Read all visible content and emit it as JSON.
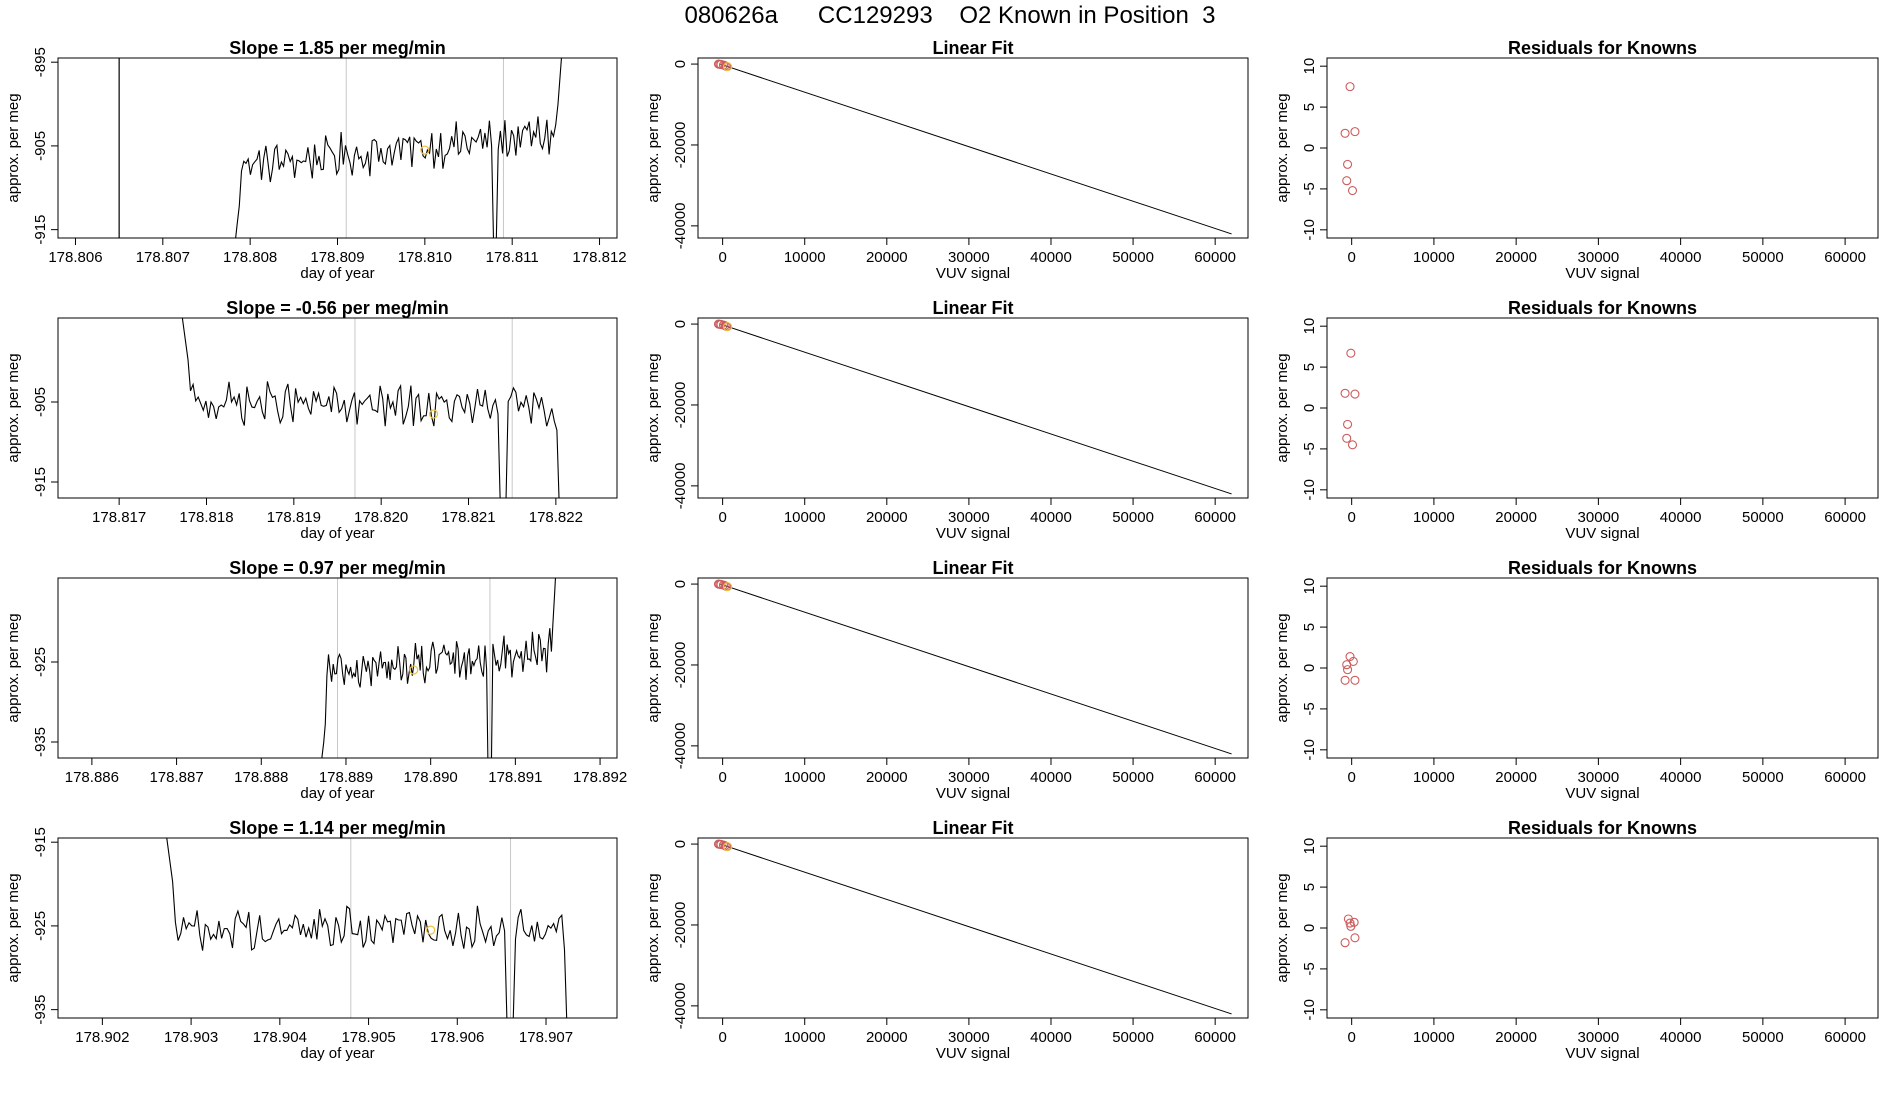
{
  "page": {
    "title": "080626a      CC129293    O2 Known in Position  3"
  },
  "colors": {
    "trace": "#000000",
    "grid_line": "#c8c8c8",
    "known_marker": "#f0c040",
    "points": "#cd5c5c",
    "axis": "#000000"
  },
  "chart_data": [
    {
      "id": "time-1",
      "type": "line",
      "row": 0,
      "col": 0,
      "title": "Slope =  1.85  per meg/min",
      "xlabel": "day of year",
      "ylabel": "approx. per meg",
      "xlim": [
        178.8058,
        178.8122
      ],
      "ylim": [
        -916,
        -894.5
      ],
      "xticks": [
        178.806,
        178.807,
        178.808,
        178.809,
        178.81,
        178.811,
        178.812
      ],
      "xtick_labels": [
        "178.806",
        "178.807",
        "178.808",
        "178.809",
        "178.810",
        "178.811",
        "178.812"
      ],
      "yticks": [
        -915,
        -905,
        -895
      ],
      "ytick_labels": [
        "-915",
        "-905",
        "-895"
      ],
      "dark_vlines": [
        178.8065
      ],
      "grey_vlines": [
        178.8091,
        178.8109
      ],
      "trace_start": 178.8078,
      "trace_end": 178.8116,
      "trace_base": -907.5,
      "trace_trend": 4.0,
      "left_plunge": true,
      "end_rise": true,
      "dip_x": 178.8108,
      "known_point": [
        178.81,
        -905.5
      ]
    },
    {
      "id": "fit-1",
      "type": "scatter",
      "row": 0,
      "col": 1,
      "title": "Linear Fit",
      "xlabel": "VUV signal",
      "ylabel": "approx. per meg",
      "xlim": [
        -3000,
        64000
      ],
      "ylim": [
        -43000,
        1500
      ],
      "xticks": [
        0,
        10000,
        20000,
        30000,
        40000,
        50000,
        60000
      ],
      "xtick_labels": [
        "0",
        "10000",
        "20000",
        "30000",
        "40000",
        "50000",
        "60000"
      ],
      "yticks": [
        0,
        -20000,
        -40000
      ],
      "ytick_labels": [
        "0",
        "-20000",
        "-40000"
      ],
      "fit_line": [
        [
          -300,
          0
        ],
        [
          62000,
          -42000
        ]
      ],
      "points": [
        [
          -500,
          0
        ],
        [
          -200,
          -100
        ],
        [
          100,
          -250
        ],
        [
          300,
          -400
        ],
        [
          500,
          -600
        ],
        [
          -350,
          -50
        ]
      ],
      "highlight_point": [
        600,
        -650
      ]
    },
    {
      "id": "resid-1",
      "type": "scatter",
      "row": 0,
      "col": 2,
      "title": "Residuals for Knowns",
      "xlabel": "VUV signal",
      "ylabel": "approx. per meg",
      "xlim": [
        -3000,
        64000
      ],
      "ylim": [
        -11,
        11
      ],
      "xticks": [
        0,
        10000,
        20000,
        30000,
        40000,
        50000,
        60000
      ],
      "xtick_labels": [
        "0",
        "10000",
        "20000",
        "30000",
        "40000",
        "50000",
        "60000"
      ],
      "yticks": [
        -10,
        -5,
        0,
        5,
        10
      ],
      "ytick_labels": [
        "-10",
        "-5",
        "0",
        "5",
        "10"
      ],
      "points": [
        [
          -200,
          7.5
        ],
        [
          -800,
          1.8
        ],
        [
          400,
          2.0
        ],
        [
          -500,
          -2.0
        ],
        [
          -600,
          -4.0
        ],
        [
          100,
          -5.2
        ]
      ]
    },
    {
      "id": "time-2",
      "type": "line",
      "row": 1,
      "col": 0,
      "title": "Slope =  -0.56  per meg/min",
      "xlabel": "day of year",
      "ylabel": "approx. per meg",
      "xlim": [
        178.8163,
        178.8227
      ],
      "ylim": [
        -917,
        -894.5
      ],
      "xticks": [
        178.817,
        178.818,
        178.819,
        178.82,
        178.821,
        178.822
      ],
      "xtick_labels": [
        "178.817",
        "178.818",
        "178.819",
        "178.820",
        "178.821",
        "178.822"
      ],
      "yticks": [
        -915,
        -905
      ],
      "ytick_labels": [
        "-915",
        "-905"
      ],
      "dark_vlines": [],
      "grey_vlines": [
        178.8197,
        178.8215
      ],
      "trace_start": 178.8177,
      "trace_end": 178.8221,
      "trace_base": -905.0,
      "trace_trend": -1.0,
      "left_plunge": false,
      "end_rise": false,
      "start_high": true,
      "end_plunge": true,
      "dip_x": 178.8214,
      "known_point": [
        178.8206,
        -906.5
      ]
    },
    {
      "id": "fit-2",
      "type": "scatter",
      "row": 1,
      "col": 1,
      "title": "Linear Fit",
      "xlabel": "VUV signal",
      "ylabel": "approx. per meg",
      "xlim": [
        -3000,
        64000
      ],
      "ylim": [
        -43000,
        1500
      ],
      "xticks": [
        0,
        10000,
        20000,
        30000,
        40000,
        50000,
        60000
      ],
      "xtick_labels": [
        "0",
        "10000",
        "20000",
        "30000",
        "40000",
        "50000",
        "60000"
      ],
      "yticks": [
        0,
        -20000,
        -40000
      ],
      "ytick_labels": [
        "0",
        "-20000",
        "-40000"
      ],
      "fit_line": [
        [
          -300,
          0
        ],
        [
          62000,
          -42000
        ]
      ],
      "points": [
        [
          -500,
          0
        ],
        [
          -200,
          -100
        ],
        [
          100,
          -250
        ],
        [
          300,
          -400
        ],
        [
          500,
          -600
        ],
        [
          -350,
          -50
        ]
      ],
      "highlight_point": [
        600,
        -650
      ]
    },
    {
      "id": "resid-2",
      "type": "scatter",
      "row": 1,
      "col": 2,
      "title": "Residuals for Knowns",
      "xlabel": "VUV signal",
      "ylabel": "approx. per meg",
      "xlim": [
        -3000,
        64000
      ],
      "ylim": [
        -11,
        11
      ],
      "xticks": [
        0,
        10000,
        20000,
        30000,
        40000,
        50000,
        60000
      ],
      "xtick_labels": [
        "0",
        "10000",
        "20000",
        "30000",
        "40000",
        "50000",
        "60000"
      ],
      "yticks": [
        -10,
        -5,
        0,
        5,
        10
      ],
      "ytick_labels": [
        "-10",
        "-5",
        "0",
        "5",
        "10"
      ],
      "points": [
        [
          -100,
          6.7
        ],
        [
          -800,
          1.8
        ],
        [
          400,
          1.7
        ],
        [
          -500,
          -2.0
        ],
        [
          -600,
          -3.7
        ],
        [
          100,
          -4.5
        ]
      ]
    },
    {
      "id": "time-3",
      "type": "line",
      "row": 2,
      "col": 0,
      "title": "Slope =  0.97  per meg/min",
      "xlabel": "day of year",
      "ylabel": "approx. per meg",
      "xlim": [
        178.8856,
        178.8922
      ],
      "ylim": [
        -937,
        -914.5
      ],
      "xticks": [
        178.886,
        178.887,
        178.888,
        178.889,
        178.89,
        178.891,
        178.892
      ],
      "xtick_labels": [
        "178.886",
        "178.887",
        "178.888",
        "178.889",
        "178.890",
        "178.891",
        "178.892"
      ],
      "yticks": [
        -935,
        -925
      ],
      "ytick_labels": [
        "-935",
        "-925"
      ],
      "dark_vlines": [],
      "grey_vlines": [
        178.8889,
        178.8907
      ],
      "trace_start": 178.8887,
      "trace_end": 178.8915,
      "trace_base": -926.5,
      "trace_trend": 3.0,
      "left_plunge": true,
      "end_rise": true,
      "dip_x": 178.8907,
      "known_point": [
        178.8898,
        -926.0
      ]
    },
    {
      "id": "fit-3",
      "type": "scatter",
      "row": 2,
      "col": 1,
      "title": "Linear Fit",
      "xlabel": "VUV signal",
      "ylabel": "approx. per meg",
      "xlim": [
        -3000,
        64000
      ],
      "ylim": [
        -43000,
        1500
      ],
      "xticks": [
        0,
        10000,
        20000,
        30000,
        40000,
        50000,
        60000
      ],
      "xtick_labels": [
        "0",
        "10000",
        "20000",
        "30000",
        "40000",
        "50000",
        "60000"
      ],
      "yticks": [
        0,
        -20000,
        -40000
      ],
      "ytick_labels": [
        "0",
        "-20000",
        "-40000"
      ],
      "fit_line": [
        [
          -300,
          0
        ],
        [
          62000,
          -42000
        ]
      ],
      "points": [
        [
          -500,
          0
        ],
        [
          -200,
          -100
        ],
        [
          100,
          -250
        ],
        [
          300,
          -400
        ],
        [
          500,
          -600
        ],
        [
          -350,
          -50
        ]
      ],
      "highlight_point": [
        600,
        -650
      ]
    },
    {
      "id": "resid-3",
      "type": "scatter",
      "row": 2,
      "col": 2,
      "title": "Residuals for Knowns",
      "xlabel": "VUV signal",
      "ylabel": "approx. per meg",
      "xlim": [
        -3000,
        64000
      ],
      "ylim": [
        -11,
        11
      ],
      "xticks": [
        0,
        10000,
        20000,
        30000,
        40000,
        50000,
        60000
      ],
      "xtick_labels": [
        "0",
        "10000",
        "20000",
        "30000",
        "40000",
        "50000",
        "60000"
      ],
      "yticks": [
        -10,
        -5,
        0,
        5,
        10
      ],
      "ytick_labels": [
        "-10",
        "-5",
        "0",
        "5",
        "10"
      ],
      "points": [
        [
          -200,
          1.4
        ],
        [
          -600,
          0.4
        ],
        [
          200,
          0.8
        ],
        [
          -500,
          -0.2
        ],
        [
          -800,
          -1.5
        ],
        [
          400,
          -1.5
        ]
      ]
    },
    {
      "id": "time-4",
      "type": "line",
      "row": 3,
      "col": 0,
      "title": "Slope =  1.14  per meg/min",
      "xlabel": "day of year",
      "ylabel": "approx. per meg",
      "xlim": [
        178.9015,
        178.9078
      ],
      "ylim": [
        -936,
        -914.5
      ],
      "xticks": [
        178.902,
        178.903,
        178.904,
        178.905,
        178.906,
        178.907
      ],
      "xtick_labels": [
        "178.902",
        "178.903",
        "178.904",
        "178.905",
        "178.906",
        "178.907"
      ],
      "yticks": [
        -935,
        -925,
        -915
      ],
      "ytick_labels": [
        "-935",
        "-925",
        "-915"
      ],
      "dark_vlines": [],
      "grey_vlines": [
        178.9048,
        178.9066
      ],
      "trace_start": 178.9027,
      "trace_end": 178.9073,
      "trace_base": -925.5,
      "trace_trend": 0.5,
      "left_plunge": false,
      "end_rise": false,
      "start_high": true,
      "end_plunge": true,
      "dip_x": 178.9066,
      "known_point": [
        178.9057,
        -925.5
      ]
    },
    {
      "id": "fit-4",
      "type": "scatter",
      "row": 3,
      "col": 1,
      "title": "Linear Fit",
      "xlabel": "VUV signal",
      "ylabel": "approx. per meg",
      "xlim": [
        -3000,
        64000
      ],
      "ylim": [
        -43000,
        1500
      ],
      "xticks": [
        0,
        10000,
        20000,
        30000,
        40000,
        50000,
        60000
      ],
      "xtick_labels": [
        "0",
        "10000",
        "20000",
        "30000",
        "40000",
        "50000",
        "60000"
      ],
      "yticks": [
        0,
        -20000,
        -40000
      ],
      "ytick_labels": [
        "0",
        "-20000",
        "-40000"
      ],
      "fit_line": [
        [
          -300,
          0
        ],
        [
          62000,
          -42000
        ]
      ],
      "points": [
        [
          -500,
          0
        ],
        [
          -200,
          -100
        ],
        [
          100,
          -250
        ],
        [
          300,
          -400
        ],
        [
          500,
          -600
        ],
        [
          -350,
          -50
        ]
      ],
      "highlight_point": [
        600,
        -650
      ]
    },
    {
      "id": "resid-4",
      "type": "scatter",
      "row": 3,
      "col": 2,
      "title": "Residuals for Knowns",
      "xlabel": "VUV signal",
      "ylabel": "approx. per meg",
      "xlim": [
        -3000,
        64000
      ],
      "ylim": [
        -11,
        11
      ],
      "xticks": [
        0,
        10000,
        20000,
        30000,
        40000,
        50000,
        60000
      ],
      "xtick_labels": [
        "0",
        "10000",
        "20000",
        "30000",
        "40000",
        "50000",
        "60000"
      ],
      "yticks": [
        -10,
        -5,
        0,
        5,
        10
      ],
      "ytick_labels": [
        "-10",
        "-5",
        "0",
        "5",
        "10"
      ],
      "points": [
        [
          -400,
          1.1
        ],
        [
          -200,
          0.6
        ],
        [
          300,
          0.7
        ],
        [
          -100,
          0.2
        ],
        [
          -800,
          -1.8
        ],
        [
          400,
          -1.2
        ]
      ]
    }
  ]
}
